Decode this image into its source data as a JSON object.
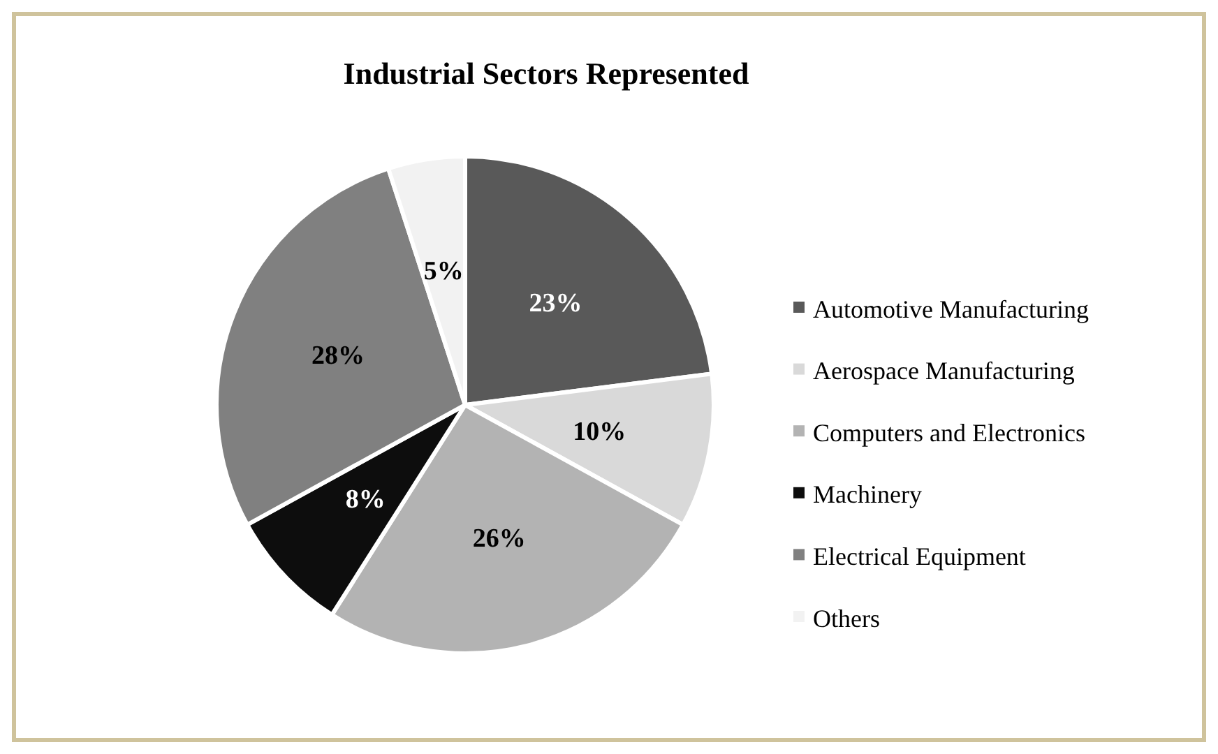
{
  "chart_data": {
    "type": "pie",
    "title": "Industrial Sectors Represented",
    "categories": [
      "Automotive Manufacturing",
      "Aerospace Manufacturing",
      "Computers and Electronics",
      "Machinery",
      "Electrical Equipment",
      "Others"
    ],
    "values": [
      23,
      10,
      26,
      8,
      28,
      5
    ],
    "colors": [
      "#595959",
      "#d9d9d9",
      "#b3b3b3",
      "#0d0d0d",
      "#808080",
      "#f2f2f2"
    ],
    "value_labels": [
      "23%",
      "10%",
      "26%",
      "8%",
      "28%",
      "5%"
    ],
    "legend": "right"
  }
}
